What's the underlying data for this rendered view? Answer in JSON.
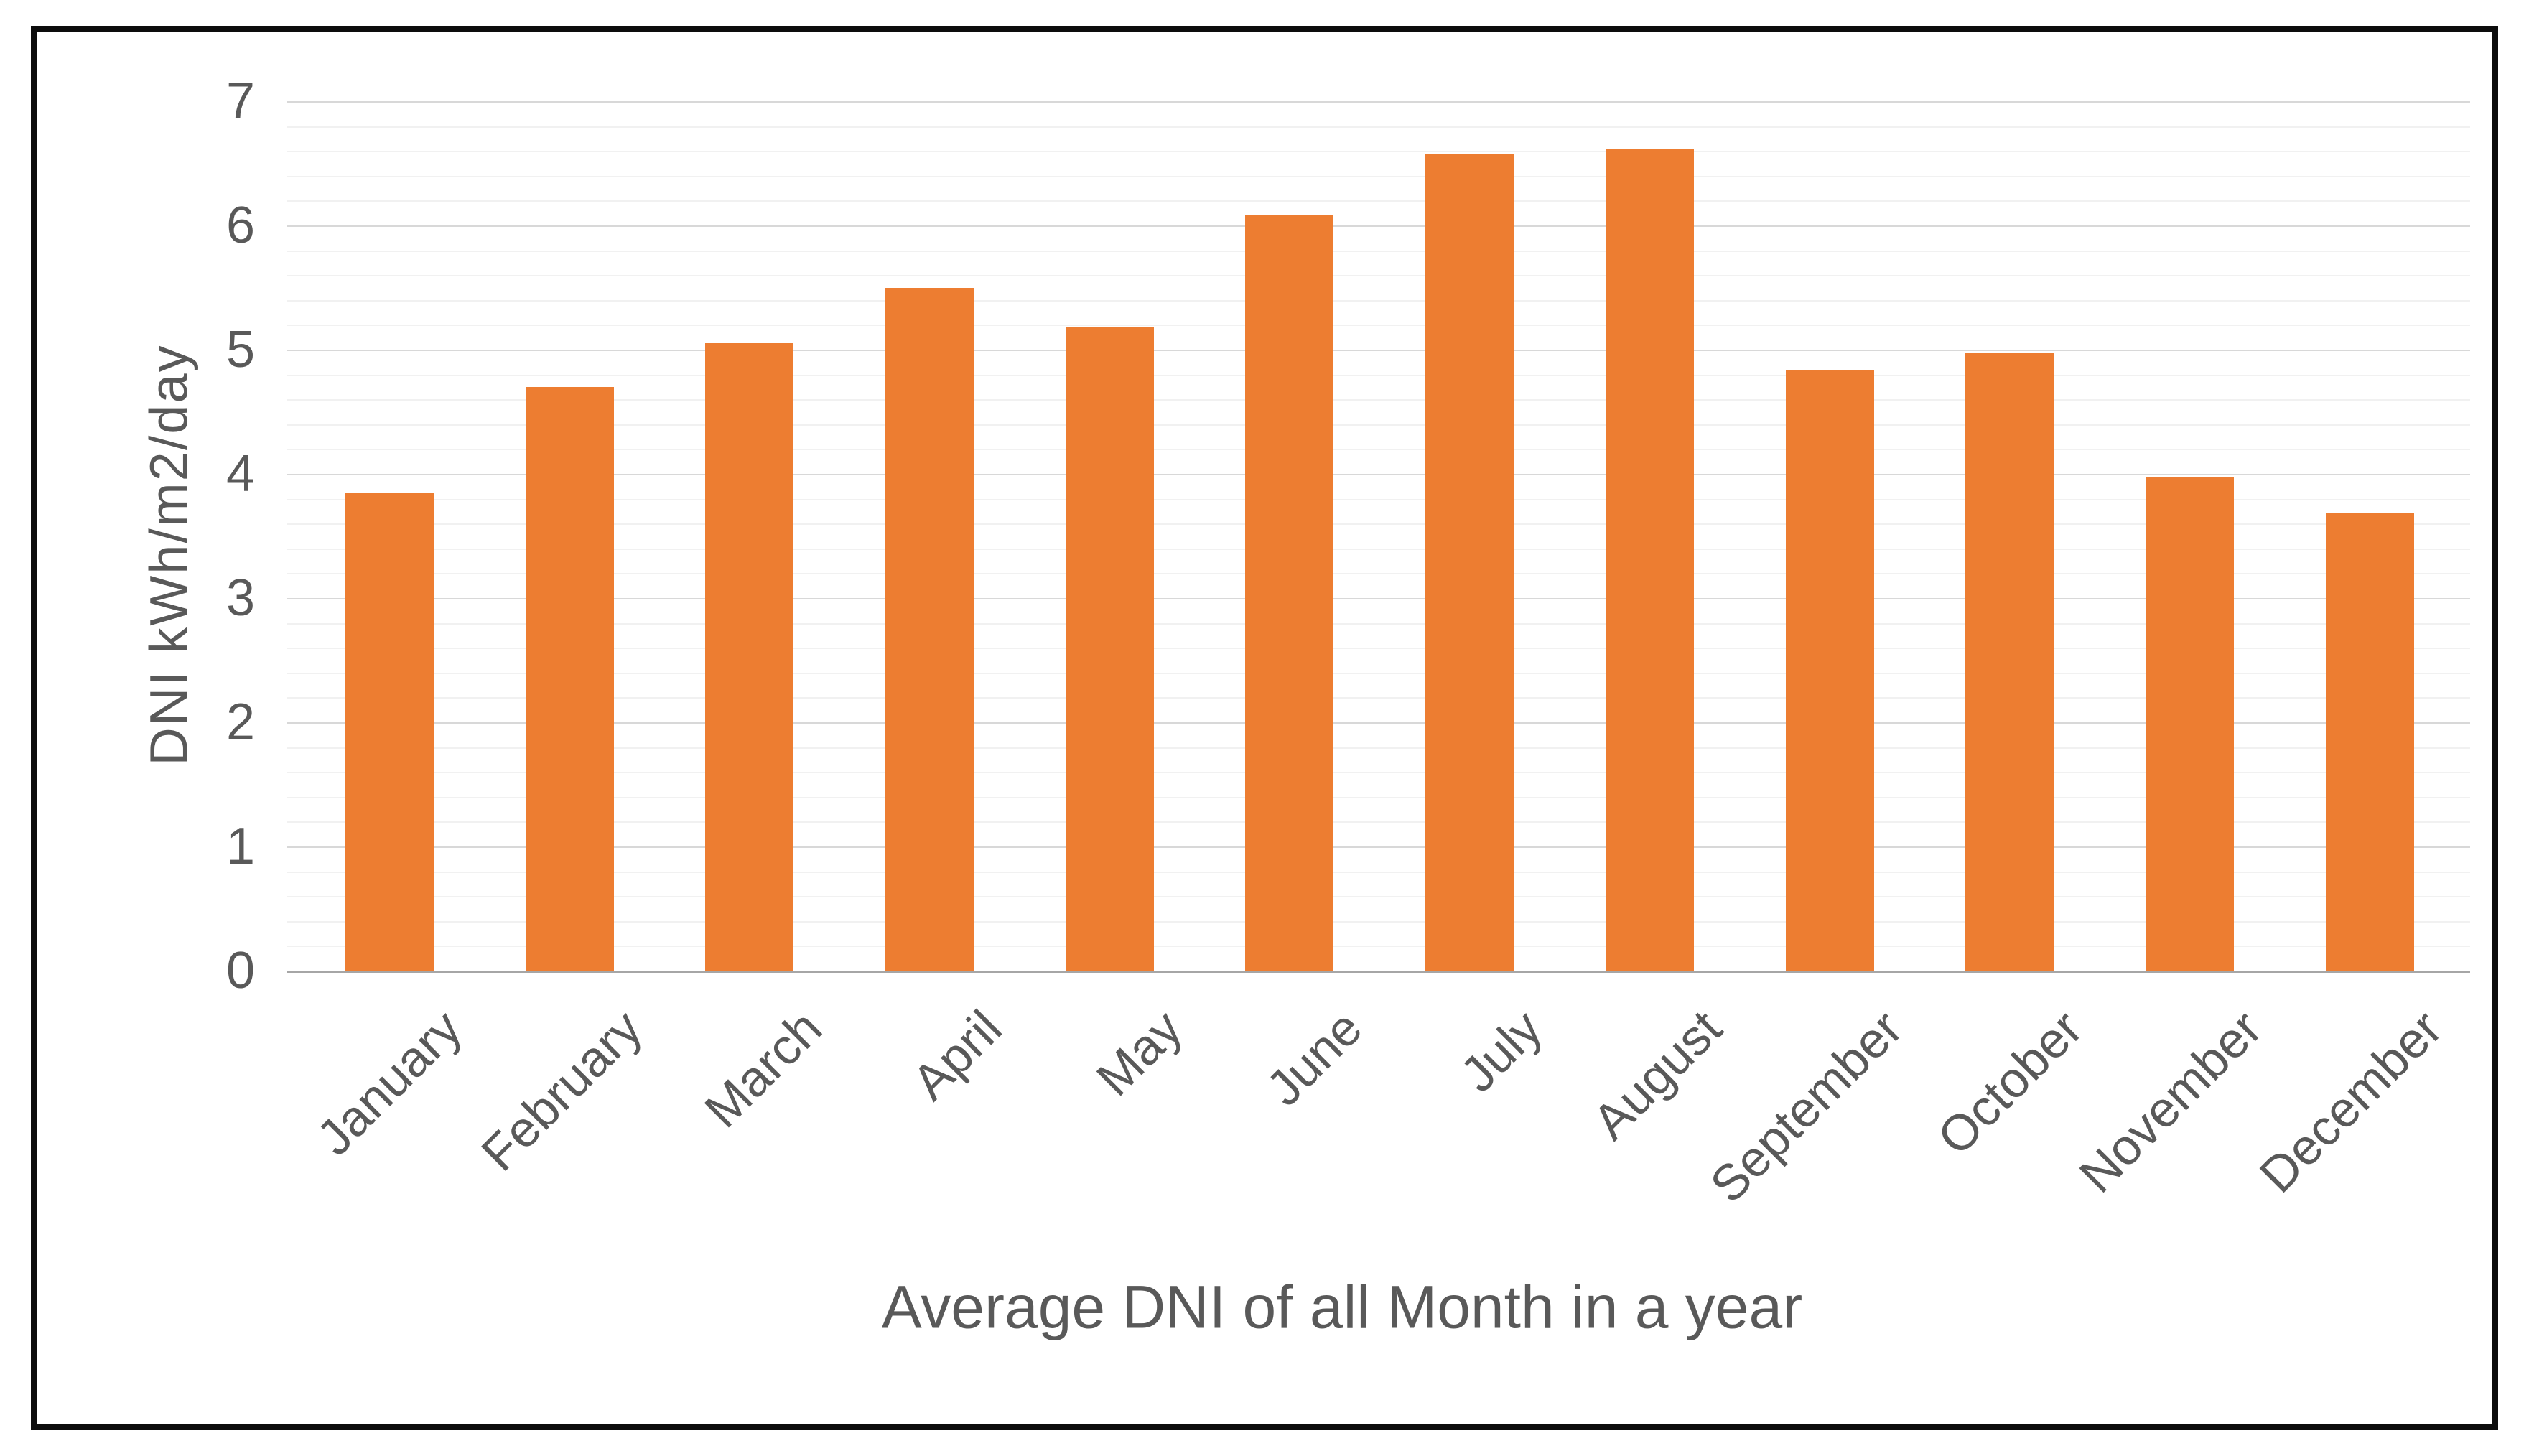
{
  "chart_data": {
    "type": "bar",
    "categories": [
      "January",
      "February",
      "March",
      "April",
      "May",
      "June",
      "July",
      "August",
      "September",
      "October",
      "November",
      "December"
    ],
    "values": [
      3.85,
      4.7,
      5.05,
      5.5,
      5.18,
      6.08,
      6.58,
      6.62,
      4.83,
      4.98,
      3.97,
      3.69
    ],
    "xlabel": "Average DNI of all Month in a year",
    "ylabel": "DNI kWh/m2/day",
    "ylim": [
      0,
      7
    ],
    "yticks": [
      0,
      1,
      2,
      3,
      4,
      5,
      6,
      7
    ],
    "ytick_step": 1,
    "minor_gridline_step": 0.2,
    "grid": "on",
    "legend": "none",
    "colors": {
      "bar": "#ED7D31",
      "major_gridline": "#D8D8D8",
      "minor_gridline": "#F1F1F1",
      "axis_line": "#A6A6A6",
      "text": "#595959",
      "border": "#0D0D0D",
      "background": "#FFFFFF"
    }
  }
}
